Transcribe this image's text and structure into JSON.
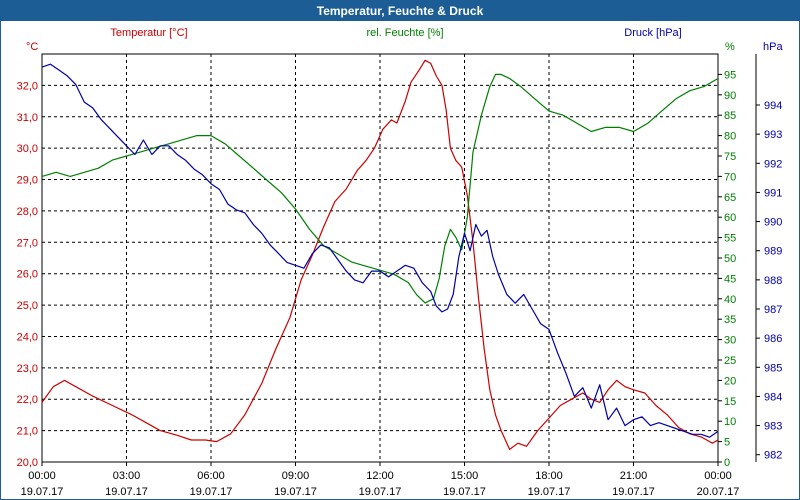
{
  "window": {
    "title": "Temperatur, Feuchte & Druck"
  },
  "colors": {
    "temperature": "#cc0000",
    "humidity": "#008000",
    "pressure": "#0000aa",
    "title_bg": "#1c5d95"
  },
  "chart_data": {
    "type": "line",
    "title": "Temperatur, Feuchte & Druck",
    "x_ticks": [
      {
        "time": "00:00",
        "date": "19.07.17"
      },
      {
        "time": "03:00",
        "date": "19.07.17"
      },
      {
        "time": "06:00",
        "date": "19.07.17"
      },
      {
        "time": "09:00",
        "date": "19.07.17"
      },
      {
        "time": "12:00",
        "date": "19.07.17"
      },
      {
        "time": "15:00",
        "date": "19.07.17"
      },
      {
        "time": "18:00",
        "date": "19.07.17"
      },
      {
        "time": "21:00",
        "date": "19.07.17"
      },
      {
        "time": "00:00",
        "date": "20.07.17"
      }
    ],
    "xlim_hours": [
      0,
      24
    ],
    "axes": {
      "temperature": {
        "label": "Temperatur [°C]",
        "unit": "°C",
        "ylim": [
          20.0,
          33.0
        ],
        "ticks": [
          "20,0",
          "21,0",
          "22,0",
          "23,0",
          "24,0",
          "25,0",
          "26,0",
          "27,0",
          "28,0",
          "29,0",
          "30,0",
          "31,0",
          "32,0"
        ]
      },
      "humidity": {
        "label": "rel. Feuchte [%]",
        "unit": "%",
        "ylim": [
          0,
          100
        ],
        "ticks": [
          "0",
          "5",
          "10",
          "15",
          "20",
          "25",
          "30",
          "35",
          "40",
          "45",
          "50",
          "55",
          "60",
          "65",
          "70",
          "75",
          "80",
          "85",
          "90",
          "95"
        ]
      },
      "pressure": {
        "label": "Druck [hPa]",
        "unit": "hPa",
        "ylim": [
          981.75,
          995.75
        ],
        "ticks": [
          "982",
          "983",
          "984",
          "985",
          "986",
          "987",
          "988",
          "989",
          "990",
          "991",
          "992",
          "993",
          "994"
        ]
      }
    },
    "series": [
      {
        "name": "Temperatur [°C]",
        "axis": "temperature",
        "x": [
          0,
          0.4,
          0.8,
          1.2,
          1.8,
          2.5,
          3.2,
          3.8,
          4.2,
          4.8,
          5.3,
          5.8,
          6.2,
          6.7,
          7.2,
          7.8,
          8.3,
          8.8,
          9.2,
          9.6,
          10.0,
          10.4,
          10.8,
          11.2,
          11.5,
          11.8,
          12.1,
          12.4,
          12.6,
          12.9,
          13.1,
          13.4,
          13.6,
          13.8,
          14.0,
          14.2,
          14.35,
          14.5,
          14.7,
          14.9,
          15.1,
          15.3,
          15.5,
          15.7,
          15.9,
          16.1,
          16.3,
          16.6,
          16.9,
          17.2,
          17.6,
          18.0,
          18.4,
          18.8,
          19.2,
          19.5,
          19.8,
          20.1,
          20.4,
          20.7,
          21.0,
          21.4,
          21.8,
          22.2,
          22.6,
          23.0,
          23.4,
          23.8,
          24.0
        ],
        "values": [
          21.9,
          22.4,
          22.6,
          22.4,
          22.1,
          21.8,
          21.5,
          21.2,
          21.0,
          20.85,
          20.7,
          20.7,
          20.65,
          20.9,
          21.5,
          22.5,
          23.6,
          24.6,
          25.8,
          26.6,
          27.5,
          28.3,
          28.7,
          29.3,
          29.6,
          30.0,
          30.6,
          30.9,
          30.8,
          31.5,
          32.1,
          32.5,
          32.8,
          32.7,
          32.3,
          32.0,
          31.2,
          30.0,
          29.6,
          29.4,
          28.5,
          27.0,
          25.2,
          23.6,
          22.3,
          21.5,
          21.0,
          20.4,
          20.6,
          20.5,
          21.0,
          21.4,
          21.8,
          22.0,
          22.2,
          22.0,
          21.9,
          22.3,
          22.6,
          22.4,
          22.3,
          22.2,
          21.8,
          21.5,
          21.1,
          20.9,
          20.8,
          20.6,
          20.7
        ]
      },
      {
        "name": "rel. Feuchte [%]",
        "axis": "humidity",
        "x": [
          0,
          0.5,
          1.0,
          1.5,
          2.0,
          2.5,
          3.0,
          3.5,
          4.0,
          4.5,
          5.0,
          5.5,
          6.0,
          6.5,
          7.0,
          7.5,
          8.0,
          8.5,
          9.0,
          9.5,
          10.0,
          10.5,
          11.0,
          11.5,
          12.0,
          12.5,
          13.0,
          13.3,
          13.6,
          13.9,
          14.1,
          14.3,
          14.5,
          14.7,
          14.9,
          15.1,
          15.3,
          15.6,
          15.9,
          16.1,
          16.3,
          16.6,
          17.0,
          17.5,
          18.0,
          18.5,
          19.0,
          19.5,
          20.0,
          20.5,
          21.0,
          21.5,
          22.0,
          22.5,
          23.0,
          23.5,
          24.0
        ],
        "values": [
          70,
          71,
          70,
          71,
          72,
          74,
          75,
          76,
          77,
          78,
          79,
          80,
          80,
          78,
          75,
          72,
          69,
          66,
          62,
          57,
          53,
          51,
          49,
          48,
          47,
          46,
          44,
          41,
          39,
          40,
          45,
          53,
          57,
          55,
          52,
          60,
          76,
          85,
          92,
          95,
          95,
          94,
          92,
          89,
          86,
          85,
          83,
          81,
          82,
          82,
          81,
          83,
          86,
          89,
          91,
          92,
          94
        ]
      },
      {
        "name": "Druck [hPa]",
        "axis": "pressure",
        "x": [
          0,
          0.3,
          0.6,
          0.9,
          1.2,
          1.5,
          1.8,
          2.1,
          2.4,
          2.7,
          3.0,
          3.3,
          3.6,
          3.9,
          4.2,
          4.5,
          4.8,
          5.1,
          5.4,
          5.7,
          6.0,
          6.3,
          6.6,
          6.9,
          7.2,
          7.5,
          7.8,
          8.1,
          8.4,
          8.7,
          9.0,
          9.3,
          9.6,
          9.9,
          10.2,
          10.5,
          10.8,
          11.1,
          11.4,
          11.7,
          12.0,
          12.3,
          12.6,
          12.9,
          13.2,
          13.5,
          13.8,
          14.0,
          14.2,
          14.4,
          14.6,
          14.8,
          15.0,
          15.2,
          15.4,
          15.6,
          15.8,
          16.0,
          16.2,
          16.5,
          16.8,
          17.1,
          17.4,
          17.7,
          18.0,
          18.3,
          18.6,
          18.9,
          19.2,
          19.5,
          19.8,
          20.1,
          20.4,
          20.7,
          21.0,
          21.3,
          21.6,
          21.9,
          22.2,
          22.5,
          22.8,
          23.1,
          23.4,
          23.7,
          24.0
        ],
        "values": [
          995.3,
          995.4,
          995.2,
          995.0,
          994.7,
          994.1,
          993.9,
          993.5,
          993.2,
          992.9,
          992.6,
          992.3,
          992.8,
          992.3,
          992.6,
          992.6,
          992.3,
          992.1,
          991.8,
          991.6,
          991.3,
          991.1,
          990.6,
          990.4,
          990.3,
          989.9,
          989.6,
          989.2,
          988.9,
          988.6,
          988.5,
          988.4,
          988.9,
          989.2,
          989.1,
          988.7,
          988.3,
          988.0,
          987.9,
          988.3,
          988.3,
          988.1,
          988.3,
          988.5,
          988.4,
          987.9,
          987.6,
          987.1,
          986.9,
          987.0,
          987.5,
          988.8,
          989.6,
          989.0,
          989.9,
          989.5,
          989.7,
          988.8,
          988.2,
          987.5,
          987.2,
          987.5,
          987.0,
          986.5,
          986.3,
          985.5,
          984.8,
          984.0,
          984.3,
          983.6,
          984.4,
          983.2,
          983.6,
          983.0,
          983.2,
          983.3,
          983.0,
          983.1,
          983.0,
          982.9,
          982.8,
          982.7,
          982.7,
          982.6,
          982.8
        ]
      }
    ]
  }
}
